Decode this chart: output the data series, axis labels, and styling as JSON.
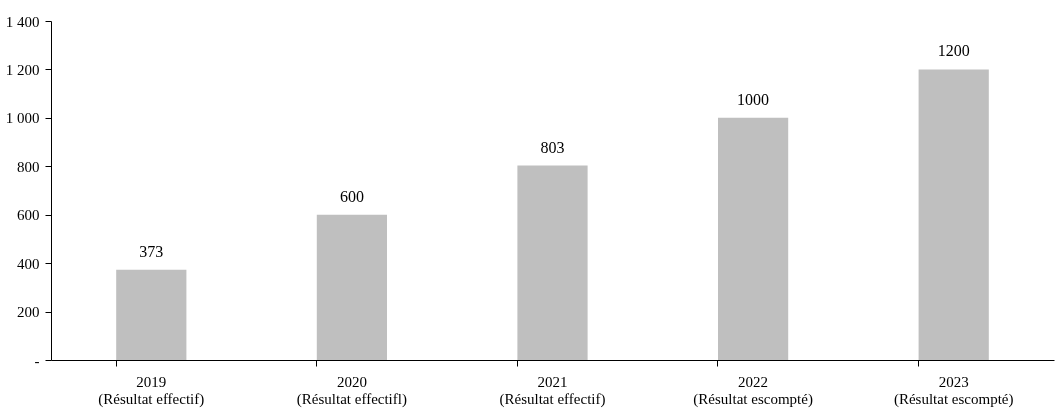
{
  "chart_data": {
    "type": "bar",
    "categories": [
      "2019\n(Résultat effectif)",
      "2020\n(Résultat effectifl)",
      "2021\n(Résultat effectif)",
      "2022\n(Résultat escompté)",
      "2023\n(Résultat escompté)"
    ],
    "values": [
      373,
      600,
      803,
      1000,
      1200
    ],
    "color": "#bfbfbf",
    "value_labels": [
      "373",
      "600",
      "803",
      "1000",
      "1200"
    ],
    "ylim": [
      0,
      1400
    ],
    "yticks": [
      {
        "value": 0,
        "label": "-"
      },
      200,
      400,
      600,
      800,
      {
        "value": 1000,
        "label": "1 000"
      },
      {
        "value": 1200,
        "label": "1 200"
      },
      {
        "value": 1400,
        "label": "1 400"
      }
    ],
    "grid": false
  }
}
